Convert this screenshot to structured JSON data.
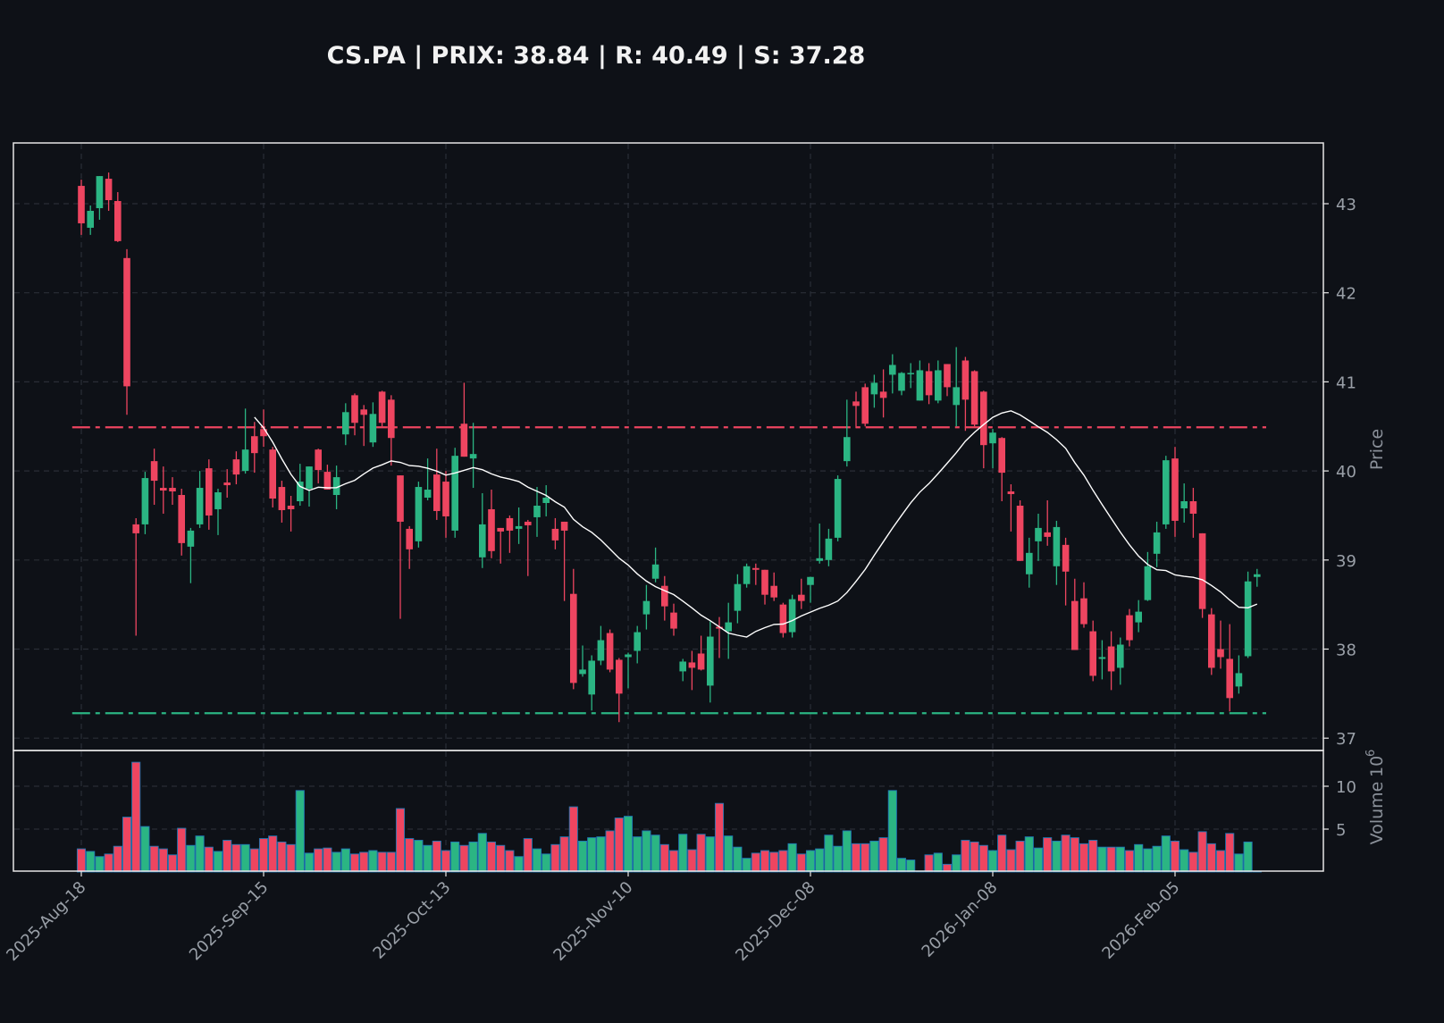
{
  "chart_data": {
    "type": "candlestick",
    "title": "CS.PA | PRIX: 38.84 | R: 40.49 | S: 37.28",
    "ticker": "CS.PA",
    "price": 38.84,
    "resistance": 40.49,
    "support": 37.28,
    "price_ylabel": "Price",
    "volume_ylabel": "Volume",
    "volume_scale_base": "10",
    "volume_scale_exp": "6",
    "price_ylim": [
      36.7,
      43.7
    ],
    "price_yticks": [
      37,
      38,
      39,
      40,
      41,
      42,
      43
    ],
    "volume_ylim": [
      0,
      12.8
    ],
    "volume_yticks": [
      5,
      10
    ],
    "moving_average_period": 20,
    "xticks": [
      {
        "index": 0,
        "label": "2025-Aug-18"
      },
      {
        "index": 20,
        "label": "2025-Sep-15"
      },
      {
        "index": 40,
        "label": "2025-Oct-13"
      },
      {
        "index": 60,
        "label": "2025-Nov-10"
      },
      {
        "index": 80,
        "label": "2025-Dec-08"
      },
      {
        "index": 100,
        "label": "2026-Jan-08"
      },
      {
        "index": 120,
        "label": "2026-Feb-05"
      }
    ],
    "grid": true,
    "colors": {
      "up": "#2bb583",
      "down": "#ee4560",
      "background": "#0e1117",
      "ma": "#ffffff",
      "volume_edge": "#1f77b4"
    },
    "candle_fields": [
      "open",
      "high",
      "low",
      "close",
      "volume_millions"
    ],
    "candles": [
      [
        43.2,
        43.27,
        42.65,
        42.78,
        2.7
      ],
      [
        42.73,
        42.98,
        42.65,
        42.92,
        2.4
      ],
      [
        42.95,
        43.31,
        42.82,
        43.31,
        1.8
      ],
      [
        43.28,
        43.35,
        42.92,
        43.04,
        2.1
      ],
      [
        43.03,
        43.13,
        42.57,
        42.58,
        3.0
      ],
      [
        42.39,
        42.49,
        40.63,
        40.95,
        6.4
      ],
      [
        39.4,
        39.47,
        38.15,
        39.3,
        12.8
      ],
      [
        39.4,
        39.99,
        39.29,
        39.92,
        5.3
      ],
      [
        40.11,
        40.25,
        39.62,
        39.89,
        3.0
      ],
      [
        39.81,
        40.05,
        39.52,
        39.78,
        2.7
      ],
      [
        39.81,
        39.93,
        39.62,
        39.77,
        2.0
      ],
      [
        39.73,
        39.8,
        39.05,
        39.19,
        5.1
      ],
      [
        39.15,
        39.36,
        38.74,
        39.33,
        3.1
      ],
      [
        39.4,
        40.0,
        39.36,
        39.81,
        4.2
      ],
      [
        40.03,
        40.13,
        39.34,
        39.5,
        2.9
      ],
      [
        39.57,
        39.8,
        39.28,
        39.76,
        2.4
      ],
      [
        39.87,
        40.02,
        39.7,
        39.84,
        3.7
      ],
      [
        40.13,
        40.22,
        39.85,
        39.96,
        3.2
      ],
      [
        40.0,
        40.7,
        39.97,
        40.24,
        3.2
      ],
      [
        40.39,
        40.55,
        39.98,
        40.2,
        2.7
      ],
      [
        40.47,
        40.69,
        40.27,
        40.39,
        3.9
      ],
      [
        40.24,
        40.27,
        39.59,
        39.69,
        4.2
      ],
      [
        39.82,
        39.89,
        39.42,
        39.56,
        3.5
      ],
      [
        39.61,
        39.72,
        39.32,
        39.57,
        3.2
      ],
      [
        39.66,
        40.08,
        39.61,
        39.88,
        9.5
      ],
      [
        39.8,
        40.05,
        39.6,
        40.05,
        2.2
      ],
      [
        40.24,
        40.25,
        39.86,
        40.01,
        2.7
      ],
      [
        39.99,
        40.07,
        39.79,
        39.79,
        2.8
      ],
      [
        39.73,
        40.06,
        39.57,
        39.93,
        2.3
      ],
      [
        40.41,
        40.76,
        40.29,
        40.66,
        2.7
      ],
      [
        40.85,
        40.87,
        40.4,
        40.54,
        2.1
      ],
      [
        40.69,
        40.74,
        40.28,
        40.63,
        2.3
      ],
      [
        40.32,
        40.77,
        40.27,
        40.64,
        2.5
      ],
      [
        40.89,
        40.9,
        40.5,
        40.54,
        2.3
      ],
      [
        40.8,
        40.85,
        40.06,
        40.37,
        2.3
      ],
      [
        39.95,
        39.95,
        38.34,
        39.43,
        7.4
      ],
      [
        39.35,
        39.38,
        38.9,
        39.12,
        3.9
      ],
      [
        39.21,
        39.88,
        39.14,
        39.82,
        3.7
      ],
      [
        39.7,
        40.14,
        39.67,
        39.79,
        3.1
      ],
      [
        39.96,
        40.25,
        39.45,
        39.55,
        3.6
      ],
      [
        39.88,
        40.0,
        39.25,
        39.49,
        2.5
      ],
      [
        39.33,
        40.26,
        39.25,
        40.17,
        3.5
      ],
      [
        40.53,
        40.99,
        40.16,
        40.16,
        3.1
      ],
      [
        40.14,
        40.54,
        39.81,
        40.19,
        3.5
      ],
      [
        39.03,
        39.75,
        38.91,
        39.4,
        4.5
      ],
      [
        39.57,
        39.79,
        39.02,
        39.1,
        3.5
      ],
      [
        39.36,
        39.36,
        38.96,
        39.32,
        3.1
      ],
      [
        39.47,
        39.5,
        39.08,
        39.33,
        2.5
      ],
      [
        39.35,
        39.59,
        39.18,
        39.38,
        1.8
      ],
      [
        39.43,
        39.45,
        38.82,
        39.39,
        3.9
      ],
      [
        39.48,
        39.82,
        39.26,
        39.61,
        2.7
      ],
      [
        39.64,
        39.84,
        39.49,
        39.7,
        2.1
      ],
      [
        39.35,
        39.47,
        39.12,
        39.22,
        3.2
      ],
      [
        39.43,
        39.43,
        38.54,
        39.33,
        4.1
      ],
      [
        38.62,
        38.9,
        37.55,
        37.62,
        7.6
      ],
      [
        37.72,
        38.04,
        37.69,
        37.77,
        3.6
      ],
      [
        37.49,
        37.93,
        37.31,
        37.87,
        4.0
      ],
      [
        37.87,
        38.26,
        37.82,
        38.1,
        4.1
      ],
      [
        38.18,
        38.22,
        37.74,
        37.77,
        4.8
      ],
      [
        37.88,
        37.9,
        37.18,
        37.5,
        6.3
      ],
      [
        37.91,
        37.96,
        37.56,
        37.94,
        6.5
      ],
      [
        37.98,
        38.26,
        37.84,
        38.19,
        4.1
      ],
      [
        38.39,
        38.72,
        38.22,
        38.54,
        4.8
      ],
      [
        38.79,
        39.14,
        38.75,
        38.95,
        4.3
      ],
      [
        38.71,
        38.82,
        38.32,
        38.48,
        3.2
      ],
      [
        38.41,
        38.51,
        38.15,
        38.23,
        2.5
      ],
      [
        37.75,
        37.89,
        37.64,
        37.86,
        4.4
      ],
      [
        37.85,
        37.98,
        37.54,
        37.79,
        2.6
      ],
      [
        37.95,
        38.15,
        37.76,
        37.77,
        4.4
      ],
      [
        37.59,
        38.31,
        37.4,
        38.14,
        4.1
      ],
      [
        38.25,
        38.36,
        37.9,
        38.23,
        8.0
      ],
      [
        38.2,
        38.52,
        37.89,
        38.3,
        4.2
      ],
      [
        38.43,
        38.84,
        38.29,
        38.73,
        2.9
      ],
      [
        38.73,
        38.96,
        38.69,
        38.93,
        1.6
      ],
      [
        38.91,
        38.96,
        38.72,
        38.89,
        2.2
      ],
      [
        38.89,
        38.89,
        38.5,
        38.61,
        2.5
      ],
      [
        38.71,
        38.86,
        38.54,
        38.58,
        2.3
      ],
      [
        38.5,
        38.52,
        38.13,
        38.18,
        2.5
      ],
      [
        38.19,
        38.61,
        38.13,
        38.56,
        3.3
      ],
      [
        38.61,
        38.79,
        38.45,
        38.54,
        2.1
      ],
      [
        38.72,
        38.81,
        38.52,
        38.81,
        2.5
      ],
      [
        38.99,
        39.41,
        38.96,
        39.02,
        2.7
      ],
      [
        39.0,
        39.35,
        38.93,
        39.24,
        4.3
      ],
      [
        39.25,
        39.95,
        39.21,
        39.91,
        3.0
      ],
      [
        40.11,
        40.8,
        40.05,
        40.38,
        4.8
      ],
      [
        40.78,
        40.89,
        40.48,
        40.73,
        3.3
      ],
      [
        40.94,
        40.98,
        40.5,
        40.53,
        3.3
      ],
      [
        40.86,
        41.08,
        40.71,
        40.99,
        3.6
      ],
      [
        40.89,
        41.14,
        40.6,
        40.82,
        4.0
      ],
      [
        41.08,
        41.31,
        40.87,
        41.19,
        9.5
      ],
      [
        40.9,
        41.11,
        40.85,
        41.1,
        1.6
      ],
      [
        41.09,
        41.21,
        40.93,
        41.1,
        1.4
      ],
      [
        40.79,
        41.24,
        40.79,
        41.13,
        0.1
      ],
      [
        41.12,
        41.21,
        40.75,
        40.85,
        2.0
      ],
      [
        40.79,
        41.24,
        40.76,
        41.13,
        2.2
      ],
      [
        41.2,
        41.2,
        40.84,
        40.94,
        0.9
      ],
      [
        40.74,
        41.39,
        40.5,
        40.94,
        2.0
      ],
      [
        41.24,
        41.28,
        40.45,
        40.8,
        3.7
      ],
      [
        41.12,
        41.13,
        40.5,
        40.52,
        3.5
      ],
      [
        40.89,
        40.9,
        40.03,
        40.29,
        3.1
      ],
      [
        40.31,
        40.47,
        40.03,
        40.43,
        2.5
      ],
      [
        40.37,
        40.38,
        39.66,
        39.98,
        4.3
      ],
      [
        39.77,
        39.85,
        39.32,
        39.74,
        2.6
      ],
      [
        39.61,
        39.67,
        38.99,
        38.99,
        3.6
      ],
      [
        38.84,
        39.25,
        38.69,
        39.08,
        4.1
      ],
      [
        39.21,
        39.52,
        38.99,
        39.36,
        2.8
      ],
      [
        39.31,
        39.67,
        39.16,
        39.26,
        4.0
      ],
      [
        38.93,
        39.44,
        38.72,
        39.37,
        3.6
      ],
      [
        39.17,
        39.25,
        38.49,
        38.87,
        4.3
      ],
      [
        38.54,
        38.79,
        37.99,
        37.99,
        4.0
      ],
      [
        38.57,
        38.75,
        38.24,
        38.28,
        3.3
      ],
      [
        38.2,
        38.32,
        37.64,
        37.7,
        3.7
      ],
      [
        37.89,
        38.1,
        37.66,
        37.91,
        2.9
      ],
      [
        38.03,
        38.2,
        37.54,
        37.75,
        2.9
      ],
      [
        37.79,
        38.13,
        37.6,
        38.05,
        2.9
      ],
      [
        38.38,
        38.45,
        38.03,
        38.1,
        2.5
      ],
      [
        38.3,
        38.55,
        38.19,
        38.42,
        3.2
      ],
      [
        38.55,
        39.09,
        38.54,
        38.93,
        2.7
      ],
      [
        39.07,
        39.43,
        38.92,
        39.31,
        3.0
      ],
      [
        39.4,
        40.17,
        39.35,
        40.12,
        4.2
      ],
      [
        40.14,
        40.27,
        39.26,
        39.44,
        3.6
      ],
      [
        39.58,
        39.86,
        39.42,
        39.66,
        2.6
      ],
      [
        39.66,
        39.81,
        39.25,
        39.52,
        2.3
      ],
      [
        39.3,
        39.3,
        38.35,
        38.45,
        4.7
      ],
      [
        38.39,
        38.46,
        37.71,
        37.79,
        3.3
      ],
      [
        38.0,
        38.32,
        37.78,
        37.91,
        2.5
      ],
      [
        37.89,
        38.28,
        37.3,
        37.45,
        4.5
      ],
      [
        37.58,
        37.93,
        37.5,
        37.73,
        2.1
      ],
      [
        37.92,
        38.87,
        37.9,
        38.76,
        3.5
      ],
      [
        38.81,
        38.9,
        38.7,
        38.84,
        0.1
      ]
    ]
  }
}
